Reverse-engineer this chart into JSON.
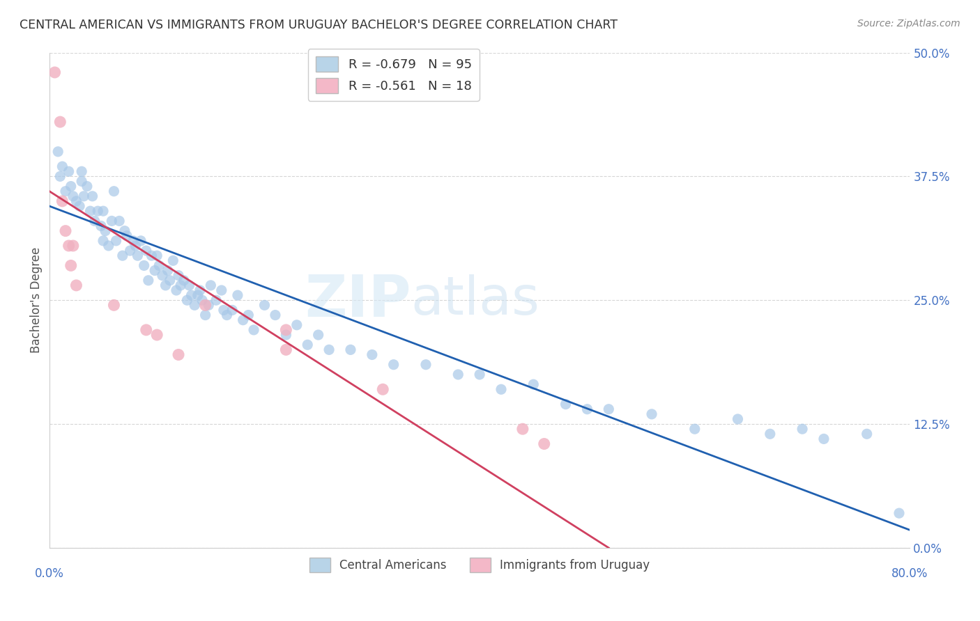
{
  "title": "CENTRAL AMERICAN VS IMMIGRANTS FROM URUGUAY BACHELOR'S DEGREE CORRELATION CHART",
  "source_text": "Source: ZipAtlas.com",
  "ylabel": "Bachelor's Degree",
  "watermark_part1": "ZIP",
  "watermark_part2": "atlas",
  "blue_R": -0.679,
  "blue_N": 95,
  "pink_R": -0.561,
  "pink_N": 18,
  "blue_dot_color": "#a8c8e8",
  "pink_dot_color": "#f0b0c0",
  "blue_line_color": "#2060b0",
  "pink_line_color": "#d04060",
  "legend_blue_fill": "#b8d4e8",
  "legend_pink_fill": "#f4b8c8",
  "title_color": "#333333",
  "axis_label_color": "#4472c4",
  "background_color": "#ffffff",
  "grid_color": "#cccccc",
  "blue_line_x0": 0.0,
  "blue_line_y0": 0.345,
  "blue_line_x1": 0.8,
  "blue_line_y1": 0.018,
  "pink_line_x0": 0.0,
  "pink_line_y0": 0.36,
  "pink_line_x1": 0.52,
  "pink_line_y1": 0.0,
  "blue_scatter_x": [
    0.008,
    0.01,
    0.012,
    0.015,
    0.018,
    0.02,
    0.022,
    0.025,
    0.028,
    0.03,
    0.03,
    0.032,
    0.035,
    0.038,
    0.04,
    0.042,
    0.045,
    0.048,
    0.05,
    0.05,
    0.052,
    0.055,
    0.058,
    0.06,
    0.062,
    0.065,
    0.068,
    0.07,
    0.072,
    0.075,
    0.078,
    0.08,
    0.082,
    0.085,
    0.088,
    0.09,
    0.092,
    0.095,
    0.098,
    0.1,
    0.102,
    0.105,
    0.108,
    0.11,
    0.112,
    0.115,
    0.118,
    0.12,
    0.122,
    0.125,
    0.128,
    0.13,
    0.132,
    0.135,
    0.138,
    0.14,
    0.142,
    0.145,
    0.148,
    0.15,
    0.155,
    0.16,
    0.162,
    0.165,
    0.17,
    0.175,
    0.18,
    0.185,
    0.19,
    0.2,
    0.21,
    0.22,
    0.23,
    0.24,
    0.25,
    0.26,
    0.28,
    0.3,
    0.32,
    0.35,
    0.38,
    0.4,
    0.42,
    0.45,
    0.48,
    0.5,
    0.52,
    0.56,
    0.6,
    0.64,
    0.67,
    0.7,
    0.72,
    0.76,
    0.79
  ],
  "blue_scatter_y": [
    0.4,
    0.375,
    0.385,
    0.36,
    0.38,
    0.365,
    0.355,
    0.35,
    0.345,
    0.38,
    0.37,
    0.355,
    0.365,
    0.34,
    0.355,
    0.33,
    0.34,
    0.325,
    0.31,
    0.34,
    0.32,
    0.305,
    0.33,
    0.36,
    0.31,
    0.33,
    0.295,
    0.32,
    0.315,
    0.3,
    0.31,
    0.305,
    0.295,
    0.31,
    0.285,
    0.3,
    0.27,
    0.295,
    0.28,
    0.295,
    0.285,
    0.275,
    0.265,
    0.28,
    0.27,
    0.29,
    0.26,
    0.275,
    0.265,
    0.27,
    0.25,
    0.265,
    0.255,
    0.245,
    0.255,
    0.26,
    0.25,
    0.235,
    0.245,
    0.265,
    0.25,
    0.26,
    0.24,
    0.235,
    0.24,
    0.255,
    0.23,
    0.235,
    0.22,
    0.245,
    0.235,
    0.215,
    0.225,
    0.205,
    0.215,
    0.2,
    0.2,
    0.195,
    0.185,
    0.185,
    0.175,
    0.175,
    0.16,
    0.165,
    0.145,
    0.14,
    0.14,
    0.135,
    0.12,
    0.13,
    0.115,
    0.12,
    0.11,
    0.115,
    0.035
  ],
  "pink_scatter_x": [
    0.005,
    0.01,
    0.012,
    0.015,
    0.018,
    0.02,
    0.022,
    0.025,
    0.06,
    0.09,
    0.1,
    0.12,
    0.145,
    0.22,
    0.22,
    0.31,
    0.44,
    0.46
  ],
  "pink_scatter_y": [
    0.48,
    0.43,
    0.35,
    0.32,
    0.305,
    0.285,
    0.305,
    0.265,
    0.245,
    0.22,
    0.215,
    0.195,
    0.245,
    0.22,
    0.2,
    0.16,
    0.12,
    0.105
  ],
  "xlim": [
    0.0,
    0.8
  ],
  "ylim": [
    0.0,
    0.5
  ],
  "xticks": [
    0.0,
    0.2,
    0.4,
    0.6,
    0.8
  ],
  "xticklabels": [
    "0.0%",
    "",
    "",
    "",
    "80.0%"
  ],
  "yticks_right": [
    0.0,
    0.125,
    0.25,
    0.375,
    0.5
  ],
  "yticklabels_right": [
    "0.0%",
    "12.5%",
    "25.0%",
    "37.5%",
    "50.0%"
  ]
}
